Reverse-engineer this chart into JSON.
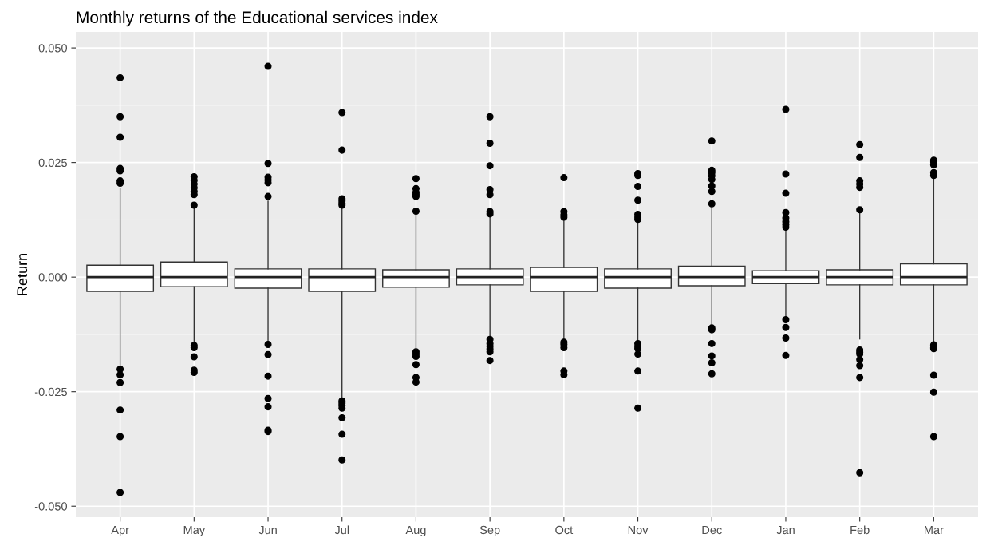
{
  "chart_data": {
    "type": "box",
    "title": "Monthly returns of the Educational services index",
    "ylabel": "Return",
    "categories": [
      "Apr",
      "May",
      "Jun",
      "Jul",
      "Aug",
      "Sep",
      "Oct",
      "Nov",
      "Dec",
      "Jan",
      "Feb",
      "Mar"
    ],
    "ylim": [
      -0.0524,
      0.0535
    ],
    "yticks": [
      {
        "value": -0.05,
        "label": "-0.050"
      },
      {
        "value": -0.025,
        "label": "-0.025"
      },
      {
        "value": 0,
        "label": "0.000"
      },
      {
        "value": 0.025,
        "label": "0.025"
      },
      {
        "value": 0.05,
        "label": "0.050"
      }
    ],
    "grid": true,
    "boxes": [
      {
        "low": -0.0199,
        "q1": -0.0031,
        "median": 0.0,
        "q3": 0.0026,
        "high": 0.0194,
        "outliers": [
          0.0435,
          0.035,
          0.0305,
          0.0237,
          0.0232,
          0.021,
          0.0205,
          -0.0201,
          -0.0213,
          -0.023,
          -0.029,
          -0.0348,
          -0.047
        ]
      },
      {
        "low": -0.0145,
        "q1": -0.0021,
        "median": 0.0,
        "q3": 0.0033,
        "high": 0.0155,
        "outliers": [
          0.0219,
          0.0211,
          0.0203,
          0.0195,
          0.0187,
          0.018,
          0.0157,
          -0.0149,
          -0.0154,
          -0.0174,
          -0.0203,
          -0.0208
        ]
      },
      {
        "low": -0.0143,
        "q1": -0.0024,
        "median": 0.0,
        "q3": 0.0018,
        "high": 0.0166,
        "outliers": [
          0.046,
          0.0248,
          0.0218,
          0.0212,
          0.0206,
          0.0176,
          -0.0147,
          -0.0169,
          -0.0216,
          -0.0265,
          -0.0283,
          -0.0334,
          -0.0337
        ]
      },
      {
        "low": -0.0264,
        "q1": -0.0031,
        "median": 0.0,
        "q3": 0.0018,
        "high": 0.0152,
        "outliers": [
          0.0359,
          0.0277,
          0.0171,
          0.0166,
          0.0161,
          0.0157,
          -0.027,
          -0.0275,
          -0.028,
          -0.0286,
          -0.0307,
          -0.0343,
          -0.0399
        ]
      },
      {
        "low": -0.0159,
        "q1": -0.0022,
        "median": 0.0,
        "q3": 0.0016,
        "high": 0.0136,
        "outliers": [
          0.0215,
          0.0193,
          0.0185,
          0.018,
          0.0176,
          0.0144,
          -0.0163,
          -0.0168,
          -0.0173,
          -0.0191,
          -0.0219,
          -0.0229
        ]
      },
      {
        "low": -0.0131,
        "q1": -0.0017,
        "median": 0.0,
        "q3": 0.0018,
        "high": 0.0131,
        "outliers": [
          0.035,
          0.0292,
          0.0243,
          0.0191,
          0.018,
          0.0143,
          0.0138,
          -0.0136,
          -0.0145,
          -0.0151,
          -0.0157,
          -0.0163,
          -0.0182
        ]
      },
      {
        "low": -0.0136,
        "q1": -0.0031,
        "median": 0.0,
        "q3": 0.0021,
        "high": 0.0125,
        "outliers": [
          0.0217,
          0.0143,
          0.0136,
          0.0131,
          -0.0142,
          -0.0147,
          -0.0154,
          -0.0205,
          -0.0213
        ]
      },
      {
        "low": -0.014,
        "q1": -0.0024,
        "median": 0.0,
        "q3": 0.0018,
        "high": 0.0122,
        "outliers": [
          0.0226,
          0.0222,
          0.0198,
          0.0168,
          0.0137,
          0.0131,
          0.0126,
          -0.0145,
          -0.0151,
          -0.0156,
          -0.0168,
          -0.0205,
          -0.0286
        ]
      },
      {
        "low": -0.0107,
        "q1": -0.0019,
        "median": 0.0,
        "q3": 0.0024,
        "high": 0.0155,
        "outliers": [
          0.0297,
          0.0233,
          0.0228,
          0.0221,
          0.0213,
          0.0199,
          0.0187,
          0.016,
          -0.0111,
          -0.0115,
          -0.0145,
          -0.0172,
          -0.0187,
          -0.0211
        ]
      },
      {
        "low": -0.0089,
        "q1": -0.0014,
        "median": 0.0,
        "q3": 0.0014,
        "high": 0.0107,
        "outliers": [
          0.0366,
          0.0225,
          0.0183,
          0.0141,
          0.0129,
          0.0121,
          0.0115,
          0.0109,
          -0.0093,
          -0.011,
          -0.0133,
          -0.0171
        ]
      },
      {
        "low": -0.0135,
        "q1": -0.0017,
        "median": 0.0,
        "q3": 0.0016,
        "high": 0.0144,
        "outliers": [
          0.0289,
          0.0261,
          0.021,
          0.0203,
          0.0196,
          0.0147,
          -0.0159,
          -0.0164,
          -0.0168,
          -0.018,
          -0.0193,
          -0.0219,
          -0.0427
        ]
      },
      {
        "low": -0.0144,
        "q1": -0.0017,
        "median": 0.0,
        "q3": 0.0029,
        "high": 0.0223,
        "outliers": [
          0.0255,
          0.0251,
          0.0245,
          0.0228,
          0.0222,
          -0.0148,
          -0.0154,
          -0.0156,
          -0.0214,
          -0.0251,
          -0.0348
        ]
      }
    ]
  }
}
